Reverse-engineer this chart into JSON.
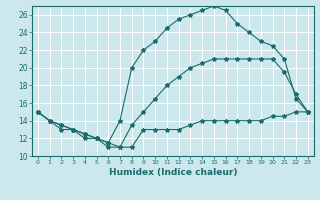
{
  "title": "",
  "xlabel": "Humidex (Indice chaleur)",
  "bg_color": "#cce8ec",
  "grid_color": "#ffffff",
  "line_color": "#1a6b6b",
  "xlim": [
    -0.5,
    23.5
  ],
  "ylim": [
    10,
    27
  ],
  "xticks": [
    0,
    1,
    2,
    3,
    4,
    5,
    6,
    7,
    8,
    9,
    10,
    11,
    12,
    13,
    14,
    15,
    16,
    17,
    18,
    19,
    20,
    21,
    22,
    23
  ],
  "yticks": [
    10,
    12,
    14,
    16,
    18,
    20,
    22,
    24,
    26
  ],
  "lines": [
    {
      "x": [
        0,
        1,
        2,
        3,
        4,
        5,
        6,
        7,
        8,
        9,
        10,
        11,
        12,
        13,
        14,
        15,
        16,
        17,
        18,
        19,
        20,
        21,
        22,
        23
      ],
      "y": [
        15,
        14,
        13,
        13,
        12,
        12,
        11,
        11,
        11,
        13,
        13,
        13,
        13,
        13.5,
        14,
        14,
        14,
        14,
        14,
        14,
        14.5,
        14.5,
        15,
        15
      ]
    },
    {
      "x": [
        0,
        1,
        2,
        3,
        4,
        5,
        6,
        7,
        8,
        9,
        10,
        11,
        12,
        13,
        14,
        15,
        16,
        17,
        18,
        19,
        20,
        21,
        22,
        23
      ],
      "y": [
        15,
        14,
        13.5,
        13,
        12.5,
        12,
        11.5,
        11,
        13.5,
        15,
        16.5,
        18,
        19,
        20,
        20.5,
        21,
        21,
        21,
        21,
        21,
        21,
        19.5,
        17,
        15
      ]
    },
    {
      "x": [
        0,
        1,
        2,
        3,
        4,
        5,
        6,
        7,
        8,
        9,
        10,
        11,
        12,
        13,
        14,
        15,
        16,
        17,
        18,
        19,
        20,
        21,
        22,
        23
      ],
      "y": [
        15,
        14,
        13.5,
        13,
        12.5,
        12,
        11.5,
        14,
        20,
        22,
        23,
        24.5,
        25.5,
        26,
        26.5,
        27,
        26.5,
        25,
        24,
        23,
        22.5,
        21,
        16.5,
        15
      ]
    }
  ]
}
